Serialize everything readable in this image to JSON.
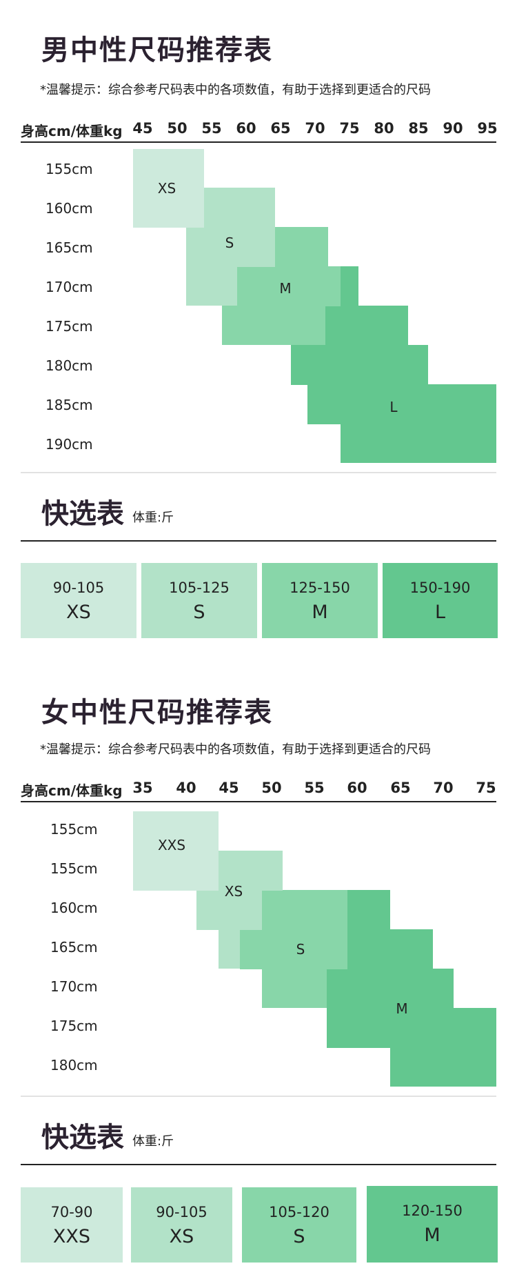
{
  "men": {
    "title": "男中性尺码推荐表",
    "tip": "*温馨提示：综合参考尺码表中的各项数值，有助于选择到更适合的尺码",
    "header_label": "身高cm/体重kg",
    "weights": [
      "45",
      "50",
      "55",
      "60",
      "65",
      "70",
      "75",
      "80",
      "85",
      "90",
      "95"
    ],
    "heights": [
      "155cm",
      "160cm",
      "165cm",
      "170cm",
      "175cm",
      "180cm",
      "185cm",
      "190cm"
    ],
    "sizes": [
      "XS",
      "S",
      "M",
      "L"
    ],
    "quick": {
      "title": "快选表",
      "subtitle": "体重:斤",
      "cards": [
        {
          "range": "90-105",
          "size": "XS"
        },
        {
          "range": "105-125",
          "size": "S"
        },
        {
          "range": "125-150",
          "size": "M"
        },
        {
          "range": "150-190",
          "size": "L"
        }
      ]
    }
  },
  "women": {
    "title": "女中性尺码推荐表",
    "tip": "*温馨提示：综合参考尺码表中的各项数值，有助于选择到更适合的尺码",
    "header_label": "身高cm/体重kg",
    "weights": [
      "35",
      "40",
      "45",
      "50",
      "55",
      "60",
      "65",
      "70",
      "75"
    ],
    "heights": [
      "155cm",
      "155cm",
      "160cm",
      "165cm",
      "170cm",
      "175cm",
      "180cm"
    ],
    "sizes": [
      "XXS",
      "XS",
      "S",
      "M"
    ],
    "quick": {
      "title": "快选表",
      "subtitle": "体重:斤",
      "cards": [
        {
          "range": "70-90",
          "size": "XXS"
        },
        {
          "range": "90-105",
          "size": "XS"
        },
        {
          "range": "105-120",
          "size": "S"
        },
        {
          "range": "120-150",
          "size": "M"
        }
      ]
    }
  },
  "colors": {
    "lightest": "#cdeadc",
    "light": "#b2e2c8",
    "medium": "#88d6a9",
    "dark": "#63c78f"
  }
}
